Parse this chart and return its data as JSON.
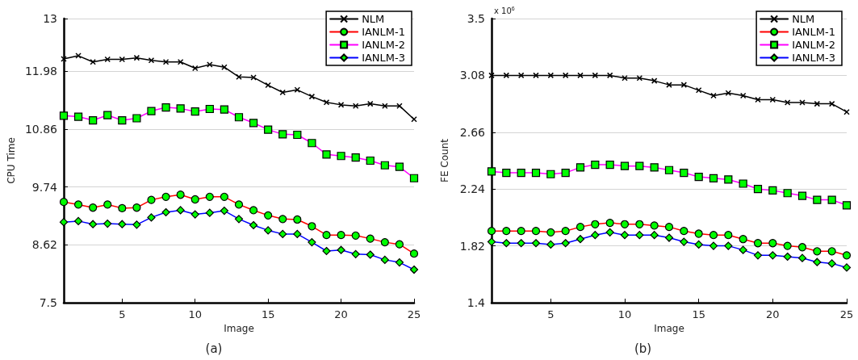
{
  "chart_data": [
    {
      "type": "line",
      "title": "(a)",
      "xlabel": "Image",
      "ylabel": "CPU Time",
      "x": [
        1,
        2,
        3,
        4,
        5,
        6,
        7,
        8,
        9,
        10,
        11,
        12,
        13,
        14,
        15,
        16,
        17,
        18,
        19,
        20,
        21,
        22,
        23,
        24,
        25
      ],
      "xlim": [
        1,
        25
      ],
      "xticks": [
        5,
        10,
        15,
        20,
        25
      ],
      "ylim": [
        7.5,
        13
      ],
      "yticks": [
        7.5,
        8.62,
        9.74,
        10.86,
        11.98,
        13
      ],
      "grid": "y",
      "legend": "top right",
      "series": [
        {
          "name": "NLM",
          "color": "#000000",
          "marker": "cross",
          "values": [
            12.22,
            12.28,
            12.16,
            12.21,
            12.21,
            12.24,
            12.19,
            12.16,
            12.16,
            12.04,
            12.11,
            12.06,
            11.87,
            11.86,
            11.71,
            11.57,
            11.62,
            11.49,
            11.38,
            11.33,
            11.31,
            11.35,
            11.31,
            11.31,
            11.05
          ]
        },
        {
          "name": "IANLM-1",
          "color": "#ff0000",
          "marker": "circle",
          "values": [
            9.45,
            9.4,
            9.34,
            9.4,
            9.33,
            9.34,
            9.49,
            9.55,
            9.59,
            9.5,
            9.55,
            9.55,
            9.4,
            9.29,
            9.19,
            9.12,
            9.11,
            8.98,
            8.81,
            8.81,
            8.8,
            8.74,
            8.67,
            8.63,
            8.45
          ]
        },
        {
          "name": "IANLM-2",
          "color": "#ff00ff",
          "marker": "square",
          "values": [
            11.12,
            11.1,
            11.03,
            11.13,
            11.03,
            11.07,
            11.21,
            11.28,
            11.26,
            11.2,
            11.25,
            11.24,
            11.09,
            10.98,
            10.85,
            10.76,
            10.75,
            10.59,
            10.37,
            10.34,
            10.31,
            10.25,
            10.16,
            10.13,
            9.91
          ]
        },
        {
          "name": "IANLM-3",
          "color": "#0000ff",
          "marker": "diamond",
          "values": [
            9.06,
            9.08,
            9.02,
            9.03,
            9.02,
            9.01,
            9.15,
            9.25,
            9.29,
            9.21,
            9.24,
            9.28,
            9.12,
            9.0,
            8.9,
            8.83,
            8.83,
            8.67,
            8.5,
            8.52,
            8.44,
            8.43,
            8.33,
            8.28,
            8.14
          ]
        }
      ]
    },
    {
      "type": "line",
      "title": "(b)",
      "xlabel": "Image",
      "ylabel": "FE Count",
      "annotations": [
        "x 10$^{6}$"
      ],
      "x": [
        1,
        2,
        3,
        4,
        5,
        6,
        7,
        8,
        9,
        10,
        11,
        12,
        13,
        14,
        15,
        16,
        17,
        18,
        19,
        20,
        21,
        22,
        23,
        24,
        25
      ],
      "xlim": [
        1,
        25
      ],
      "xticks": [
        5,
        10,
        15,
        20,
        25
      ],
      "ylim": [
        1.4,
        3.5
      ],
      "yticks": [
        1.4,
        1.82,
        2.24,
        2.66,
        3.08,
        3.5
      ],
      "grid": "y",
      "legend": "top right",
      "series": [
        {
          "name": "NLM",
          "color": "#000000",
          "marker": "cross",
          "values": [
            3.08,
            3.08,
            3.08,
            3.08,
            3.08,
            3.08,
            3.08,
            3.08,
            3.08,
            3.06,
            3.06,
            3.04,
            3.01,
            3.01,
            2.97,
            2.93,
            2.95,
            2.93,
            2.9,
            2.9,
            2.88,
            2.88,
            2.87,
            2.87,
            2.81
          ]
        },
        {
          "name": "IANLM-1",
          "color": "#ff0000",
          "marker": "circle",
          "values": [
            1.93,
            1.93,
            1.93,
            1.93,
            1.92,
            1.93,
            1.96,
            1.98,
            1.99,
            1.98,
            1.98,
            1.97,
            1.96,
            1.93,
            1.91,
            1.9,
            1.9,
            1.87,
            1.84,
            1.84,
            1.82,
            1.81,
            1.78,
            1.78,
            1.75
          ]
        },
        {
          "name": "IANLM-2",
          "color": "#ff00ff",
          "marker": "square",
          "values": [
            2.37,
            2.36,
            2.36,
            2.36,
            2.35,
            2.36,
            2.4,
            2.42,
            2.42,
            2.41,
            2.41,
            2.4,
            2.38,
            2.36,
            2.33,
            2.32,
            2.31,
            2.28,
            2.24,
            2.23,
            2.21,
            2.19,
            2.16,
            2.16,
            2.12
          ]
        },
        {
          "name": "IANLM-3",
          "color": "#0000ff",
          "marker": "diamond",
          "values": [
            1.85,
            1.84,
            1.84,
            1.84,
            1.83,
            1.84,
            1.87,
            1.9,
            1.92,
            1.9,
            1.9,
            1.9,
            1.88,
            1.85,
            1.83,
            1.82,
            1.82,
            1.79,
            1.75,
            1.75,
            1.74,
            1.73,
            1.7,
            1.69,
            1.66
          ]
        }
      ]
    }
  ]
}
